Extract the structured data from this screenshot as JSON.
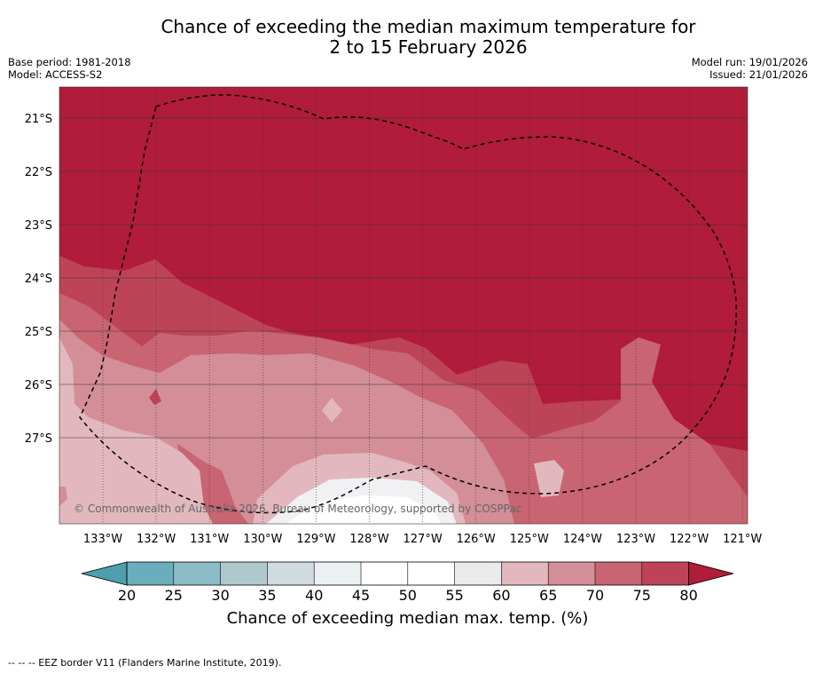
{
  "header": {
    "title_line1": "Chance of exceeding the median maximum temperature for",
    "title_line2": "2 to 15 February 2026",
    "base_period": "Base period: 1981-2018",
    "model": "Model: ACCESS-S2",
    "model_run": "Model run: 19/01/2026",
    "issued": "Issued: 21/01/2026"
  },
  "map": {
    "lat_labels": [
      "21°S",
      "22°S",
      "23°S",
      "24°S",
      "25°S",
      "26°S",
      "27°S"
    ],
    "lon_labels": [
      "133°W",
      "132°W",
      "131°W",
      "130°W",
      "129°W",
      "128°W",
      "127°W",
      "126°W",
      "125°W",
      "124°W",
      "123°W",
      "122°W",
      "121°W"
    ],
    "copyright": "© Commonwealth of Australia 2026, Bureau of Meteorology, supported by COSPPac"
  },
  "colorbar": {
    "ticks": [
      "20",
      "25",
      "30",
      "35",
      "40",
      "45",
      "50",
      "55",
      "60",
      "65",
      "70",
      "75",
      "80"
    ],
    "colors": [
      "#6aaebe",
      "#8bbcc7",
      "#aec9ce",
      "#cfdbdf",
      "#ebf1f3",
      "#ffffff",
      "#ffffff",
      "#ebebed",
      "#e2b8be",
      "#d38e97",
      "#c96472",
      "#bd4456"
    ],
    "low_extend_color": "#4e9fae",
    "high_extend_color": "#b01c3a",
    "label": "Chance of exceeding median max. temp. (%)"
  },
  "footer": {
    "legend": "--  --  -- EEZ border V11 (Flanders Marine Institute, 2019)."
  }
}
